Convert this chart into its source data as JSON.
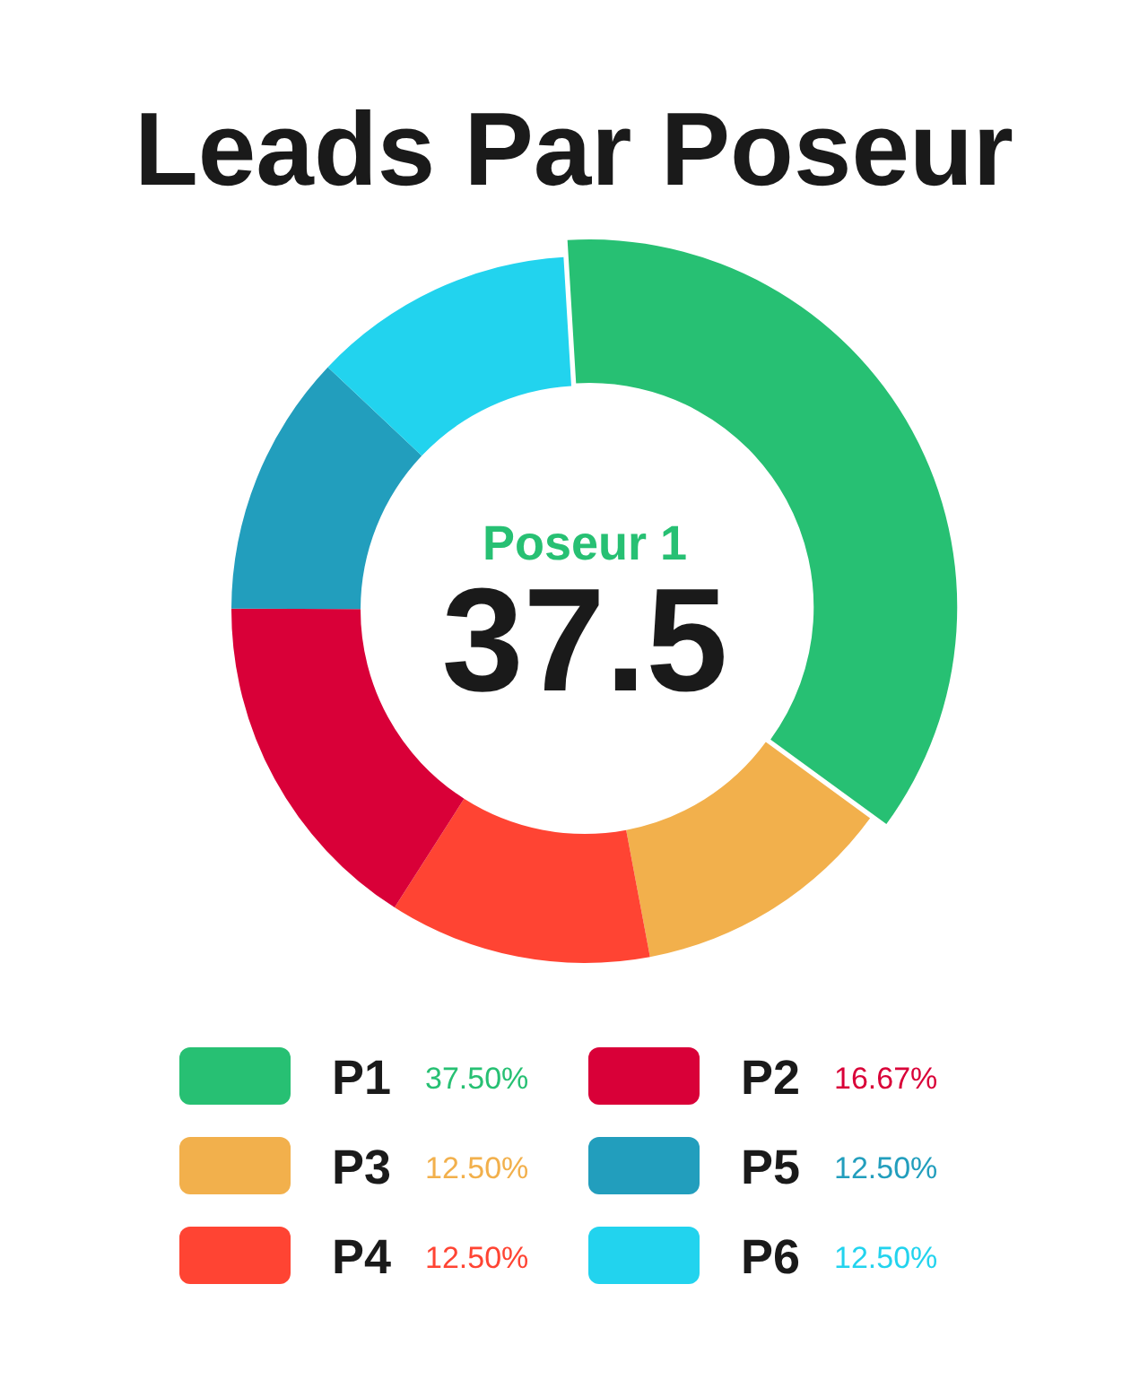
{
  "chart_data": {
    "type": "donut",
    "title": "Leads Par Poseur",
    "categories": [
      "P1",
      "P3",
      "P4",
      "P2",
      "P5",
      "P6"
    ],
    "values": [
      37.5,
      12.5,
      12.5,
      16.67,
      12.5,
      12.5
    ],
    "value_labels": [
      "37.50%",
      "12.50%",
      "12.50%",
      "16.67%",
      "12.50%",
      "12.50%"
    ],
    "colors": [
      "#27c073",
      "#f2b04c",
      "#ff4433",
      "#d90038",
      "#229ebd",
      "#22d3ee"
    ],
    "annotations": [
      "Poseur 1",
      "37.5"
    ],
    "legend": "bottom"
  }
}
